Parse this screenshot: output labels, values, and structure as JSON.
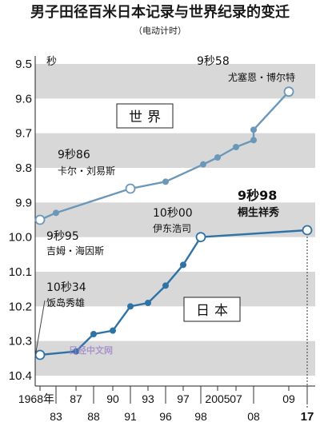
{
  "chart_data": {
    "type": "line",
    "title": "男子田径百米日本记录与世界纪录的变迁",
    "subtitle": "（电动计时）",
    "ylabel": "秒",
    "ylim": [
      9.5,
      10.4
    ],
    "y_inverted": true,
    "y_ticks": [
      "9.5",
      "9.6",
      "9.7",
      "9.8",
      "9.9",
      "10.0",
      "10.1",
      "10.2",
      "10.3",
      "10.4"
    ],
    "x_ticks": [
      {
        "year": 1968,
        "label": "1968年",
        "row": "top"
      },
      {
        "year": 1983,
        "label": "83",
        "row": "bottom"
      },
      {
        "year": 1987,
        "label": "87",
        "row": "top"
      },
      {
        "year": 1988,
        "label": "88",
        "row": "bottom"
      },
      {
        "year": 1990,
        "label": "90",
        "row": "top"
      },
      {
        "year": 1991,
        "label": "91",
        "row": "bottom"
      },
      {
        "year": 1993,
        "label": "93",
        "row": "top"
      },
      {
        "year": 1996,
        "label": "96",
        "row": "bottom"
      },
      {
        "year": 1997,
        "label": "97",
        "row": "top"
      },
      {
        "year": 1998,
        "label": "98",
        "row": "bottom"
      },
      {
        "year": 2005,
        "label": "2005",
        "row": "top"
      },
      {
        "year": 2007,
        "label": "07",
        "row": "top"
      },
      {
        "year": 2008,
        "label": "08",
        "row": "bottom"
      },
      {
        "year": 2009,
        "label": "09",
        "row": "top"
      },
      {
        "year": 2017,
        "label": "17",
        "row": "bottom",
        "bold": true
      }
    ],
    "series": [
      {
        "name": "世界",
        "color": "#6b98b9",
        "points": [
          {
            "x": 1968,
            "y": 9.95,
            "open": true
          },
          {
            "x": 1983,
            "y": 9.93
          },
          {
            "x": 1991,
            "y": 9.86,
            "open": true
          },
          {
            "x": 1996,
            "y": 9.84
          },
          {
            "x": 1999,
            "y": 9.79
          },
          {
            "x": 2005,
            "y": 9.77
          },
          {
            "x": 2007,
            "y": 9.74
          },
          {
            "x": 2008,
            "y": 9.72
          },
          {
            "x": 2008,
            "y": 9.69
          },
          {
            "x": 2009,
            "y": 9.58,
            "open": true
          }
        ]
      },
      {
        "name": "日本",
        "color": "#2f73a6",
        "points": [
          {
            "x": 1968,
            "y": 10.34,
            "open": true
          },
          {
            "x": 1987,
            "y": 10.33
          },
          {
            "x": 1988,
            "y": 10.28
          },
          {
            "x": 1990,
            "y": 10.27
          },
          {
            "x": 1991,
            "y": 10.2
          },
          {
            "x": 1993,
            "y": 10.19
          },
          {
            "x": 1996,
            "y": 10.14
          },
          {
            "x": 1997,
            "y": 10.08
          },
          {
            "x": 1998,
            "y": 10.0,
            "open": true
          },
          {
            "x": 2017,
            "y": 9.98,
            "open": true
          }
        ]
      }
    ],
    "annotations": [
      {
        "time": "9秒58",
        "name": "尤塞恩・博尔特"
      },
      {
        "time": "9秒86",
        "name": "卡尔・刘易斯"
      },
      {
        "time": "9秒95",
        "name": "吉姆・海因斯"
      },
      {
        "time": "10秒00",
        "name": "伊东浩司"
      },
      {
        "time": "9秒98",
        "name": "桐生祥秀"
      },
      {
        "time": "10秒34",
        "name": "饭岛秀雄"
      }
    ],
    "watermark": "日经中文网"
  }
}
